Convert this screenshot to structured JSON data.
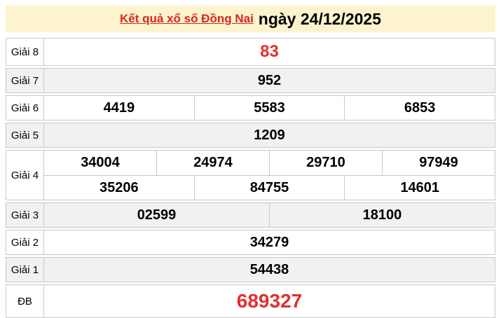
{
  "header": {
    "title_link": "Kết quả xổ số Đồng Nai",
    "date_text": "ngày 24/12/2025"
  },
  "colors": {
    "header_bg": "#fdf3ce",
    "shade_row_bg": "#f1f1f1",
    "border": "#c9c9c9",
    "highlight_red": "#e03030",
    "link_red": "#d6281e"
  },
  "table": {
    "rows": [
      {
        "label": "Giải 8",
        "groups": [
          [
            "83"
          ]
        ],
        "shade": false,
        "red": true,
        "tall": true,
        "big": false
      },
      {
        "label": "Giải 7",
        "groups": [
          [
            "952"
          ]
        ],
        "shade": true,
        "red": false,
        "tall": false,
        "big": false
      },
      {
        "label": "Giải 6",
        "groups": [
          [
            "4419",
            "5583",
            "6853"
          ]
        ],
        "shade": false,
        "red": false,
        "tall": false,
        "big": false
      },
      {
        "label": "Giải 5",
        "groups": [
          [
            "1209"
          ]
        ],
        "shade": true,
        "red": false,
        "tall": false,
        "big": false
      },
      {
        "label": "Giải 4",
        "groups": [
          [
            "34004",
            "24974",
            "29710",
            "97949"
          ],
          [
            "35206",
            "84755",
            "14601"
          ]
        ],
        "shade": false,
        "red": false,
        "tall": false,
        "big": false
      },
      {
        "label": "Giải 3",
        "groups": [
          [
            "02599",
            "18100"
          ]
        ],
        "shade": true,
        "red": false,
        "tall": false,
        "big": false
      },
      {
        "label": "Giải 2",
        "groups": [
          [
            "34279"
          ]
        ],
        "shade": false,
        "red": false,
        "tall": false,
        "big": false
      },
      {
        "label": "Giải 1",
        "groups": [
          [
            "54438"
          ]
        ],
        "shade": true,
        "red": false,
        "tall": false,
        "big": false
      },
      {
        "label": "ĐB",
        "groups": [
          [
            "689327"
          ]
        ],
        "shade": false,
        "red": true,
        "tall": false,
        "big": true
      }
    ]
  }
}
